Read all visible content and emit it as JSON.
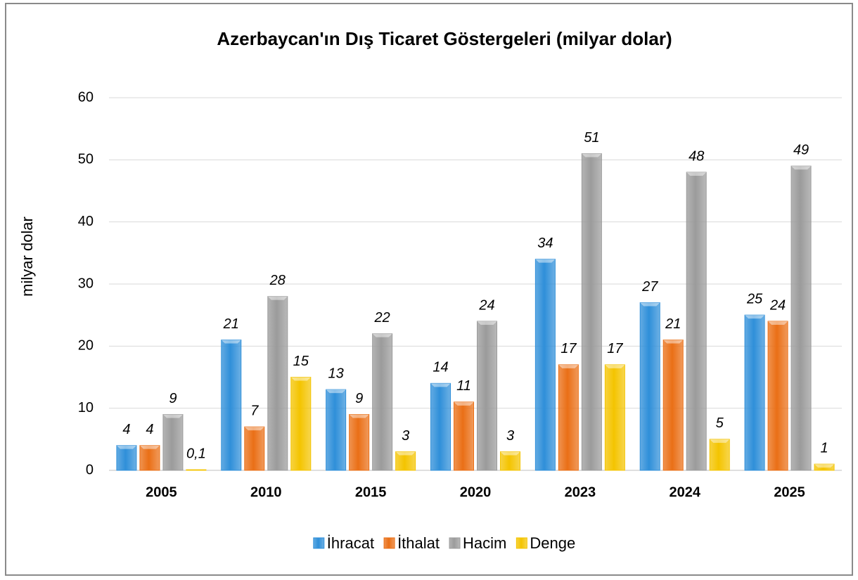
{
  "chart_data": {
    "type": "bar",
    "title": "Azerbaycan'ın Dış Ticaret Göstergeleri (milyar dolar)",
    "y_label": "milyar dolar",
    "categories": [
      "2005",
      "2010",
      "2015",
      "2020",
      "2023",
      "2024",
      "2025"
    ],
    "series": [
      {
        "name": "İhracat",
        "color": "#2f8fd9",
        "values": [
          4,
          21,
          13,
          14,
          34,
          27,
          25
        ]
      },
      {
        "name": "İthalat",
        "color": "#ea6f16",
        "values": [
          4,
          7,
          9,
          11,
          17,
          21,
          24
        ]
      },
      {
        "name": "Hacim",
        "color": "#9b9b9b",
        "values": [
          9,
          28,
          22,
          24,
          51,
          48,
          49
        ]
      },
      {
        "name": "Denge",
        "color": "#f4c400",
        "values": [
          0.1,
          15,
          3,
          3,
          17,
          5,
          1
        ],
        "value_labels": [
          "0,1",
          "15",
          "3",
          "3",
          "17",
          "5",
          "1"
        ]
      }
    ],
    "ylim": [
      0,
      60
    ],
    "yticks": [
      0,
      10,
      20,
      30,
      40,
      50,
      60
    ],
    "grid": true,
    "legend": "bottom"
  }
}
